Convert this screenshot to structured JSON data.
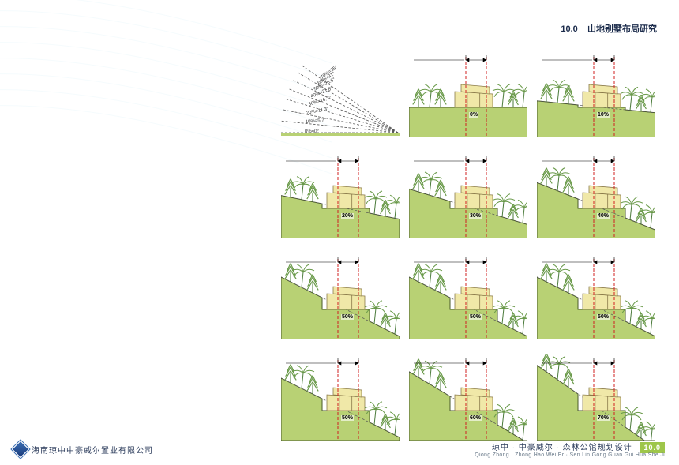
{
  "header": {
    "section_num": "10.0",
    "title": "山地别墅布局研究"
  },
  "footer": {
    "company": "海南琼中中豪威尔置业有限公司",
    "project_cn": "琼中 · 中豪威尔 · 森林公馆规划设计",
    "project_py": "Qiong Zhong · Zhong Hao Wei Er · Sen Lin Gong Guan Gui Hua She Ji",
    "page": "10.0"
  },
  "colors": {
    "ground": "#b8d174",
    "ground_edge": "#4a5a2a",
    "house_wall": "#f0e8a8",
    "house_line": "#8a7a4a",
    "tree": "#6a9a4a",
    "tree_dark": "#4a7a3a",
    "red_line": "#d02020",
    "dash": "#555555",
    "sky": "#ffffff",
    "accent": "#9ec64a"
  },
  "fan": {
    "angles": [
      {
        "label": "70%=35°",
        "deg": 35
      },
      {
        "label": "60%=31°",
        "deg": 31
      },
      {
        "label": "50%=26.6°",
        "deg": 26.6
      },
      {
        "label": "40%=21.8°",
        "deg": 21.8
      },
      {
        "label": "30%=16.7°",
        "deg": 16.7
      },
      {
        "label": "20%=11.3°",
        "deg": 11.3
      },
      {
        "label": "10%=5.7°",
        "deg": 5.7
      },
      {
        "label": "0%=0°",
        "deg": 0
      }
    ]
  },
  "cells": [
    {
      "pct": "0%",
      "slope": 0
    },
    {
      "pct": "10%",
      "slope": 10
    },
    {
      "pct": "20%",
      "slope": 20
    },
    {
      "pct": "30%",
      "slope": 30
    },
    {
      "pct": "40%",
      "slope": 40
    },
    {
      "pct": "50%",
      "slope": 50
    },
    {
      "pct": "50%",
      "slope": 50
    },
    {
      "pct": "50%",
      "slope": 50
    },
    {
      "pct": "50%",
      "slope": 50
    },
    {
      "pct": "60%",
      "slope": 60
    },
    {
      "pct": "70%",
      "slope": 70
    }
  ],
  "diagram": {
    "width": 150,
    "height": 110,
    "house": {
      "x": 58,
      "w": 48,
      "h": 20,
      "roof_tilt": 3
    },
    "tree_positions_left": [
      12,
      26,
      40
    ],
    "tree_positions_right": [
      118,
      132,
      144
    ],
    "red_x": [
      72,
      98
    ],
    "dim_arrow_gap": 6
  }
}
